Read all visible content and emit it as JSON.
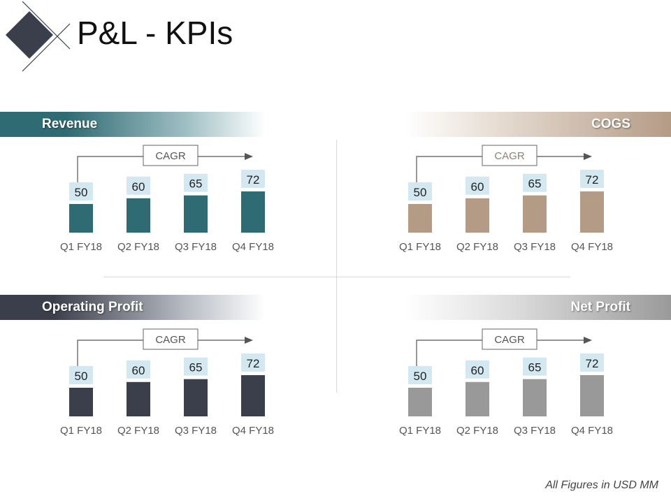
{
  "title": "P&L - KPIs",
  "footer": "All Figures in USD MM",
  "colors": {
    "revenue": "#2f6b73",
    "cogs": "#b49b86",
    "operating_profit": "#3a3f4b",
    "net_profit": "#999999",
    "label_bg": "#d4e8f2"
  },
  "chart_data": [
    {
      "type": "bar",
      "title": "Revenue",
      "cagr_label": "CAGR",
      "categories": [
        "Q1 FY18",
        "Q2 FY18",
        "Q3 FY18",
        "Q4 FY18"
      ],
      "values": [
        50,
        60,
        65,
        72
      ],
      "ylim": [
        0,
        80
      ],
      "color": "#2f6b73"
    },
    {
      "type": "bar",
      "title": "COGS",
      "cagr_label": "CAGR",
      "categories": [
        "Q1 FY18",
        "Q2 FY18",
        "Q3 FY18",
        "Q4 FY18"
      ],
      "values": [
        50,
        60,
        65,
        72
      ],
      "ylim": [
        0,
        80
      ],
      "color": "#b49b86"
    },
    {
      "type": "bar",
      "title": "Operating Profit",
      "cagr_label": "CAGR",
      "categories": [
        "Q1 FY18",
        "Q2 FY18",
        "Q3 FY18",
        "Q4 FY18"
      ],
      "values": [
        50,
        60,
        65,
        72
      ],
      "ylim": [
        0,
        80
      ],
      "color": "#3a3f4b"
    },
    {
      "type": "bar",
      "title": "Net Profit",
      "cagr_label": "CAGR",
      "categories": [
        "Q1 FY18",
        "Q2 FY18",
        "Q3 FY18",
        "Q4 FY18"
      ],
      "values": [
        50,
        60,
        65,
        72
      ],
      "ylim": [
        0,
        80
      ],
      "color": "#999999"
    }
  ]
}
